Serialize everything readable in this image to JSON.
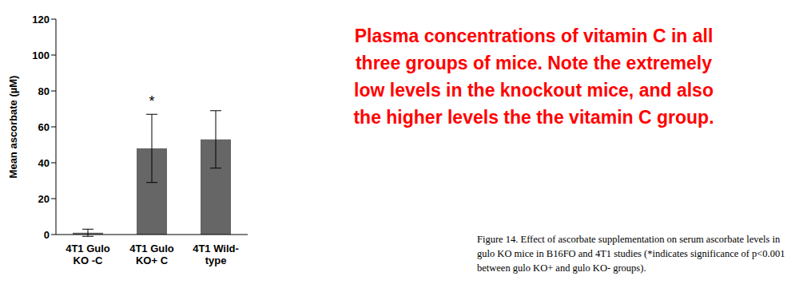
{
  "chart_data": {
    "type": "bar",
    "categories": [
      "4T1 Gulo KO -C",
      "4T1 Gulo KO+ C",
      "4T1 Wild-type"
    ],
    "values": [
      1,
      48,
      53
    ],
    "errors": [
      2,
      19,
      16
    ],
    "color": "#666666",
    "ylim": [
      0,
      120
    ],
    "yticks": [
      0,
      20,
      40,
      60,
      80,
      100,
      120
    ],
    "y_label": "Mean ascorbate (µM)",
    "grid": false,
    "annotations": [
      {
        "category": "4T1 Gulo KO+ C",
        "text": "*"
      }
    ],
    "annotation_text": [
      "Plasma concentrations of vitamin C in all",
      "three groups of mice. Note the extremely",
      "low levels in the knockout mice, and also",
      "the higher levels the the vitamin C group."
    ],
    "caption": [
      "Figure 14. Effect of ascorbate supplementation on serum ascorbate levels in",
      "gulo KO mice in B16FO and 4T1 studies (*indicates significance of p<0.001",
      "between gulo KO+ and gulo KO- groups)."
    ]
  }
}
